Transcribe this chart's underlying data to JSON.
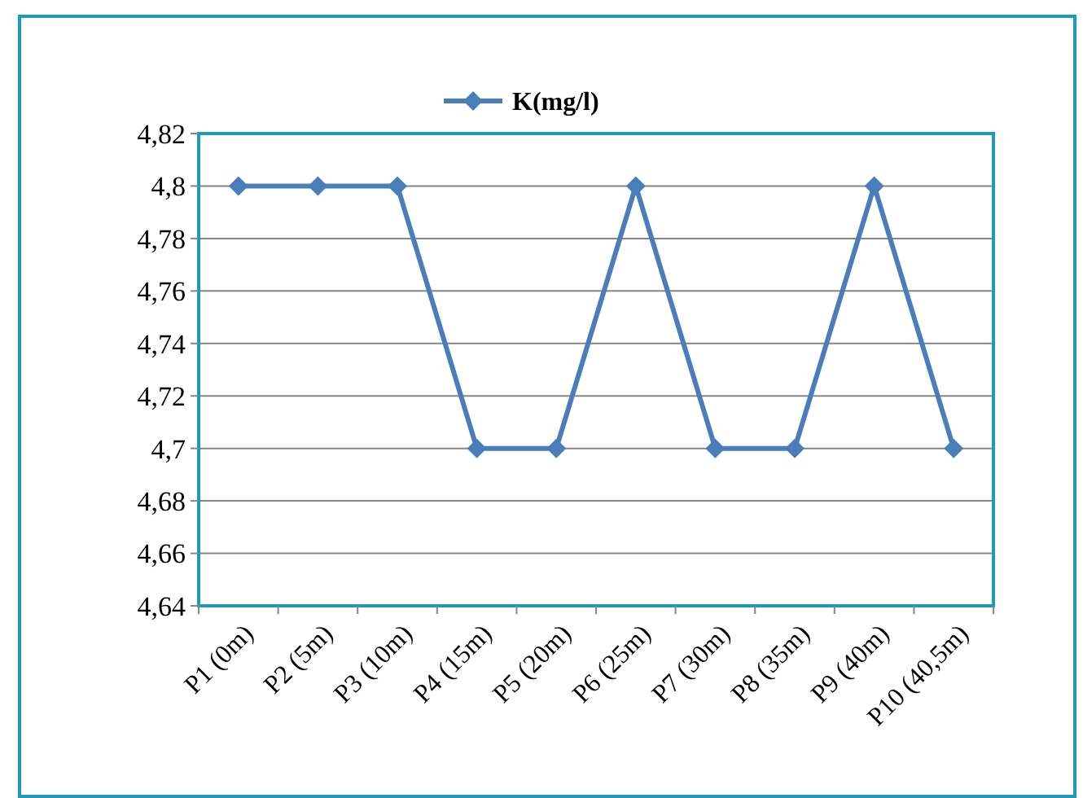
{
  "chart_data": {
    "type": "line",
    "categories": [
      "P1 (0m)",
      "P2 (5m)",
      "P3 (10m)",
      "P4 (15m)",
      "P5 (20m)",
      "P6 (25m)",
      "P7 (30m)",
      "P8 (35m)",
      "P9 (40m)",
      "P10 (40,5m)"
    ],
    "series": [
      {
        "name": "K(mg/l)",
        "color": "#4a7ebb",
        "values": [
          4.8,
          4.8,
          4.8,
          4.7,
          4.7,
          4.8,
          4.7,
          4.7,
          4.8,
          4.7
        ]
      }
    ],
    "ylim": [
      4.64,
      4.82
    ],
    "yticks": [
      {
        "value": 4.64,
        "label": "4,64"
      },
      {
        "value": 4.66,
        "label": "4,66"
      },
      {
        "value": 4.68,
        "label": "4,68"
      },
      {
        "value": 4.7,
        "label": "4,7"
      },
      {
        "value": 4.72,
        "label": "4,72"
      },
      {
        "value": 4.74,
        "label": "4,74"
      },
      {
        "value": 4.76,
        "label": "4,76"
      },
      {
        "value": 4.78,
        "label": "4,78"
      },
      {
        "value": 4.8,
        "label": "4,8"
      },
      {
        "value": 4.82,
        "label": "4,82"
      }
    ],
    "grid": "y",
    "legend": "top",
    "marker": "diamond",
    "line_style": "solid"
  }
}
